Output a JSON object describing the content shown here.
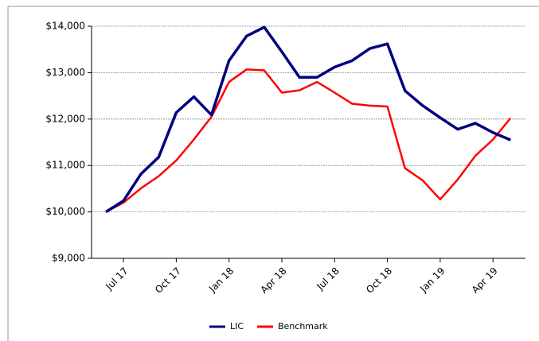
{
  "chart_data": {
    "type": "line",
    "categories": [
      null,
      "Jul 17",
      null,
      null,
      "Oct 17",
      null,
      null,
      "Jan 18",
      null,
      null,
      "Apr 18",
      null,
      null,
      "Jul 18",
      null,
      null,
      "Oct 18",
      null,
      null,
      "Jan 19",
      null,
      null,
      "Apr 19",
      null
    ],
    "series": [
      {
        "name": "LIC",
        "color": "#000080",
        "values": [
          10000,
          10240,
          10820,
          11180,
          12140,
          12480,
          12090,
          13260,
          13790,
          13980,
          13450,
          12900,
          12900,
          13120,
          13260,
          13520,
          13620,
          12610,
          12290,
          12030,
          11780,
          11910,
          11710,
          11550
        ]
      },
      {
        "name": "Benchmark",
        "color": "#ff0000",
        "values": [
          10000,
          10200,
          10510,
          10770,
          11110,
          11560,
          12050,
          12800,
          13070,
          13050,
          12570,
          12620,
          12800,
          12570,
          12330,
          12290,
          12270,
          10940,
          10680,
          10270,
          10700,
          11210,
          11560,
          12020
        ]
      }
    ],
    "ylim": [
      9000,
      14000
    ],
    "yticks": [
      {
        "value": 9000,
        "label": "$9,000"
      },
      {
        "value": 10000,
        "label": "$10,000"
      },
      {
        "value": 11000,
        "label": "$11,000"
      },
      {
        "value": 12000,
        "label": "$12,000"
      },
      {
        "value": 13000,
        "label": "$13,000"
      },
      {
        "value": 14000,
        "label": "$14,000"
      }
    ],
    "grid": true,
    "legend": "bottom"
  }
}
